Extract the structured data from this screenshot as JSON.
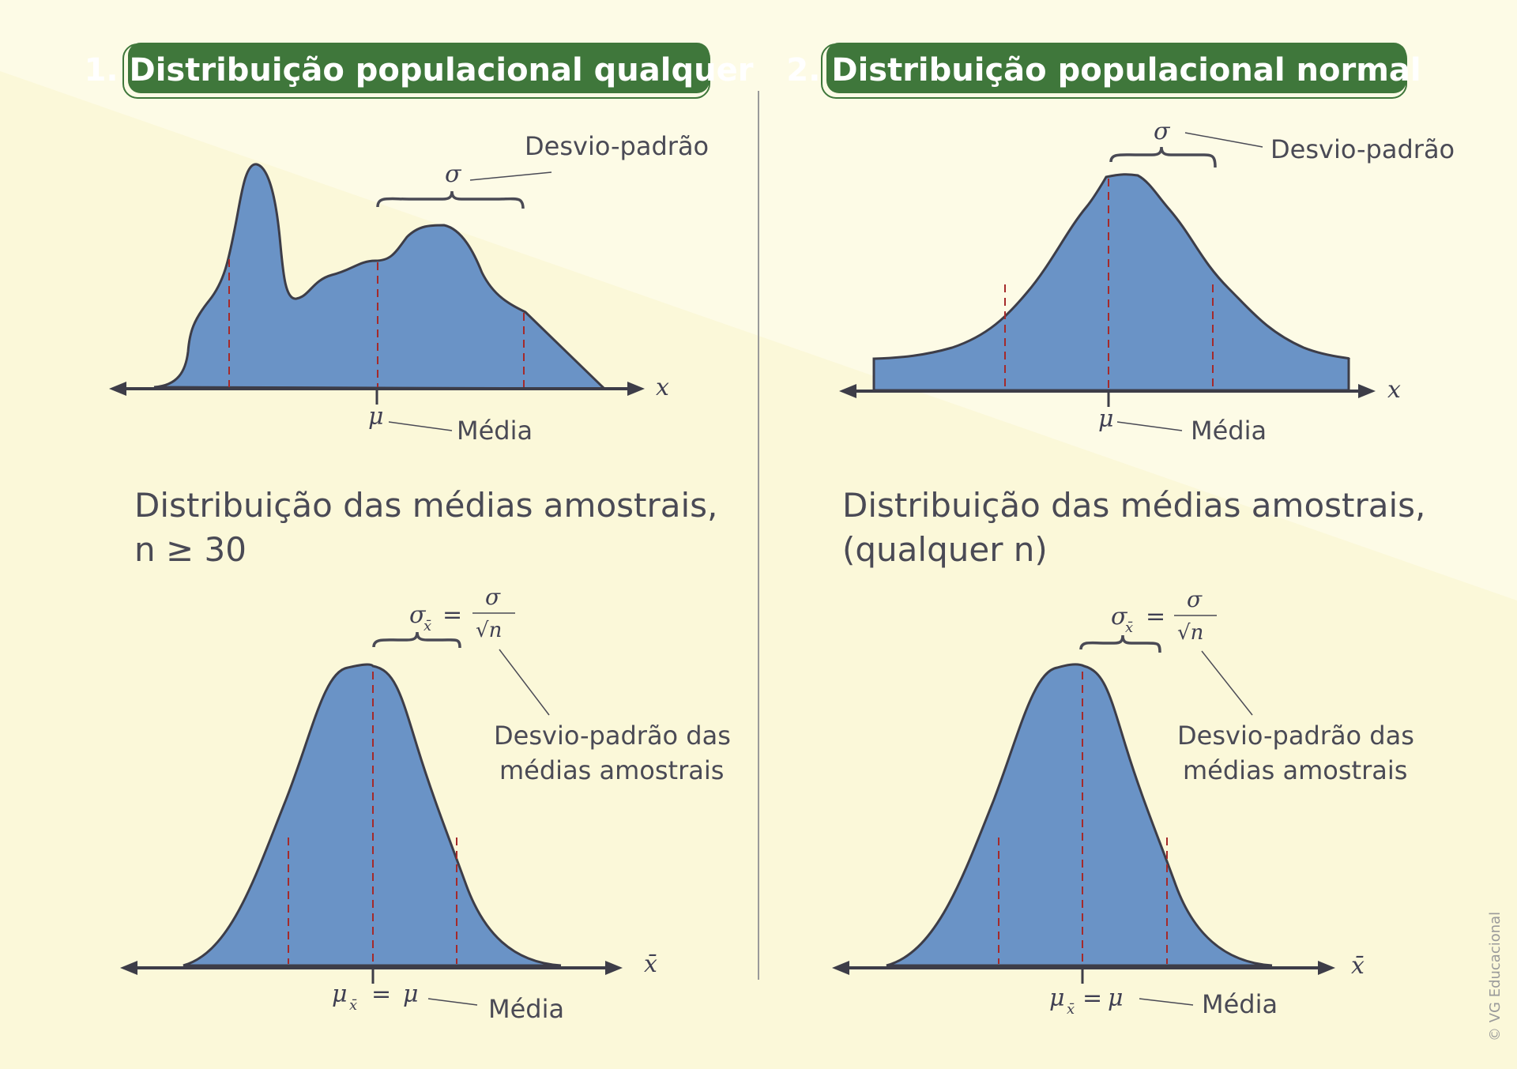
{
  "panels": {
    "left": {
      "header": "1. Distribuição populacional qualquer",
      "top_sd_label": "Desvio-padrão",
      "top_sigma": "σ",
      "top_axis_label": "x",
      "top_mean_symbol": "μ",
      "top_mean_label": "Média",
      "bottom_title_line1": "Distribuição das médias amostrais,",
      "bottom_title_line2": "n ≥ 30",
      "bottom_formula_lhs": "σ",
      "bottom_formula_sub": "x̄",
      "bottom_formula_eq": "=",
      "bottom_formula_num": "σ",
      "bottom_formula_den": "√n",
      "bottom_sd_label_line1": "Desvio-padrão das",
      "bottom_sd_label_line2": "médias amostrais",
      "bottom_axis_label": "x̄",
      "bottom_mean_expr": "μ",
      "bottom_mean_sub": "x̄",
      "bottom_mean_eq": "=",
      "bottom_mean_rhs": "μ",
      "bottom_mean_label": "Média"
    },
    "right": {
      "header": "2. Distribuição populacional normal",
      "top_sd_label": "Desvio-padrão",
      "top_sigma": "σ",
      "top_axis_label": "x",
      "top_mean_symbol": "μ",
      "top_mean_label": "Média",
      "bottom_title_line1": "Distribuição das médias amostrais,",
      "bottom_title_line2": "(qualquer n)",
      "bottom_formula_lhs": "σ",
      "bottom_formula_sub": "x̄",
      "bottom_formula_eq": "=",
      "bottom_formula_num": "σ",
      "bottom_formula_den": "√n",
      "bottom_sd_label_line1": "Desvio-padrão das",
      "bottom_sd_label_line2": "médias amostrais",
      "bottom_axis_label": "x̄",
      "bottom_mean_expr": "μ",
      "bottom_mean_sub": "x̄",
      "bottom_mean_eq": "=",
      "bottom_mean_rhs": "μ",
      "bottom_mean_label": "Média"
    }
  },
  "copyright": "© VG Educacional",
  "colors": {
    "background": "#fdfbe6",
    "header_fill": "#3f773b",
    "curve_fill": "#6a93c6",
    "curve_stroke": "#3d3d48",
    "dash_line": "#a52a2a",
    "axis": "#3d3d48"
  }
}
